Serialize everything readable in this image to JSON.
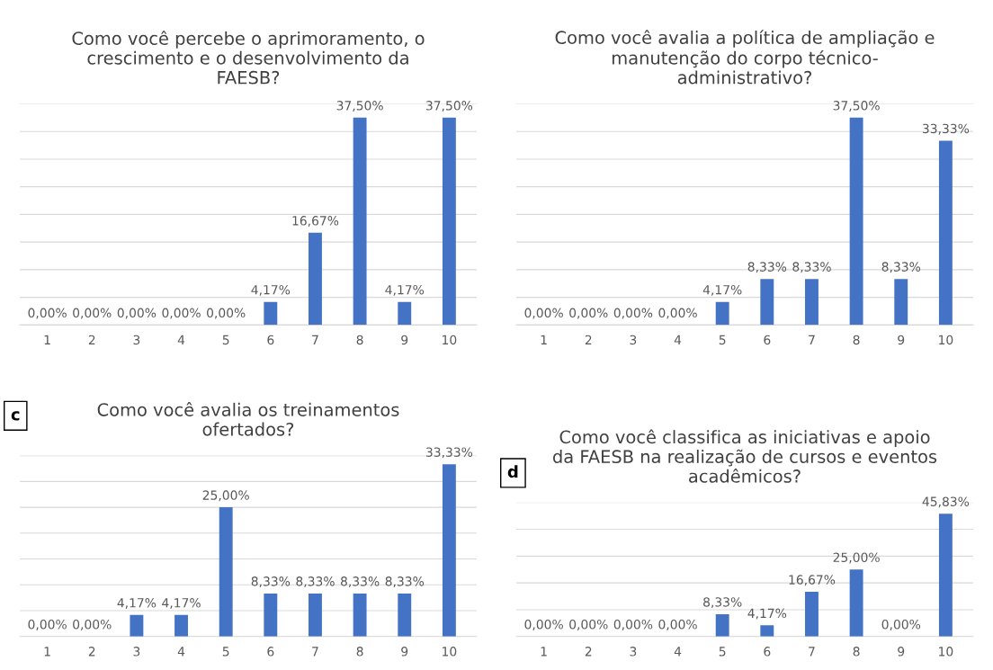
{
  "chart_data": [
    {
      "type": "bar",
      "title": "Como você percebe o aprimoramento, o\ncrescimento e o desenvolvimento da\nFAESB?",
      "categories": [
        "1",
        "2",
        "3",
        "4",
        "5",
        "6",
        "7",
        "8",
        "9",
        "10"
      ],
      "values": [
        0,
        0,
        0,
        0,
        0,
        4.17,
        16.67,
        37.5,
        4.17,
        37.5
      ],
      "value_labels": [
        "0,00%",
        "0,00%",
        "0,00%",
        "0,00%",
        "0,00%",
        "4,17%",
        "16,67%",
        "37,50%",
        "4,17%",
        "37,50%"
      ],
      "color": "#4472c4",
      "ylim": [
        0,
        40
      ],
      "yticks": [
        {
          "value": 0,
          "label": null
        },
        {
          "value": 5,
          "label": null
        },
        {
          "value": 10,
          "label": null
        },
        {
          "value": 15,
          "label": null
        },
        {
          "value": 20,
          "label": null
        },
        {
          "value": 25,
          "label": null
        },
        {
          "value": 30,
          "label": null
        },
        {
          "value": 35,
          "label": null
        },
        {
          "value": 40,
          "label": null
        }
      ],
      "grid": "y",
      "tick_labels": "x"
    },
    {
      "type": "bar",
      "title": "Como você avalia a política de ampliação e\nmanutenção do corpo técnico-\nadministrativo?",
      "categories": [
        "1",
        "2",
        "3",
        "4",
        "5",
        "6",
        "7",
        "8",
        "9",
        "10"
      ],
      "values": [
        0,
        0,
        0,
        0,
        4.17,
        8.33,
        8.33,
        37.5,
        8.33,
        33.33
      ],
      "value_labels": [
        "0,00%",
        "0,00%",
        "0,00%",
        "0,00%",
        "4,17%",
        "8,33%",
        "8,33%",
        "37,50%",
        "8,33%",
        "33,33%"
      ],
      "color": "#4472c4",
      "ylim": [
        0,
        40
      ],
      "yticks": [
        {
          "value": 0,
          "label": null
        },
        {
          "value": 5,
          "label": null
        },
        {
          "value": 10,
          "label": null
        },
        {
          "value": 15,
          "label": null
        },
        {
          "value": 20,
          "label": null
        },
        {
          "value": 25,
          "label": null
        },
        {
          "value": 30,
          "label": null
        },
        {
          "value": 35,
          "label": null
        },
        {
          "value": 40,
          "label": null
        }
      ],
      "grid": "y",
      "tick_labels": "x"
    },
    {
      "type": "bar",
      "title": "Como você avalia os treinamentos\nofertados?",
      "annotations": [
        "c"
      ],
      "categories": [
        "1",
        "2",
        "3",
        "4",
        "5",
        "6",
        "7",
        "8",
        "9",
        "10"
      ],
      "values": [
        0,
        0,
        4.17,
        4.17,
        25,
        8.33,
        8.33,
        8.33,
        8.33,
        33.33
      ],
      "value_labels": [
        "0,00%",
        "0,00%",
        "4,17%",
        "4,17%",
        "25,00%",
        "8,33%",
        "8,33%",
        "8,33%",
        "8,33%",
        "33,33%"
      ],
      "color": "#4472c4",
      "ylim": [
        0,
        35
      ],
      "yticks": [
        {
          "value": 0,
          "label": null
        },
        {
          "value": 5,
          "label": null
        },
        {
          "value": 10,
          "label": null
        },
        {
          "value": 15,
          "label": null
        },
        {
          "value": 20,
          "label": null
        },
        {
          "value": 25,
          "label": null
        },
        {
          "value": 30,
          "label": null
        },
        {
          "value": 35,
          "label": null
        }
      ],
      "grid": "y",
      "tick_labels": "x"
    },
    {
      "type": "bar",
      "title": "Como você classifica as iniciativas e apoio\nda FAESB na realização de cursos e eventos\nacadêmicos?",
      "annotations": [
        "d"
      ],
      "categories": [
        "1",
        "2",
        "3",
        "4",
        "5",
        "6",
        "7",
        "8",
        "9",
        "10"
      ],
      "values": [
        0,
        0,
        0,
        0,
        8.33,
        4.17,
        16.67,
        25,
        0,
        45.83
      ],
      "value_labels": [
        "0,00%",
        "0,00%",
        "0,00%",
        "0,00%",
        "8,33%",
        "4,17%",
        "16,67%",
        "25,00%",
        "0,00%",
        "45,83%"
      ],
      "color": "#4472c4",
      "ylim": [
        0,
        50
      ],
      "yticks": [
        {
          "value": 0,
          "label": null
        },
        {
          "value": 10,
          "label": null
        },
        {
          "value": 20,
          "label": null
        },
        {
          "value": 30,
          "label": null
        },
        {
          "value": 40,
          "label": null
        },
        {
          "value": 50,
          "label": null
        }
      ],
      "grid": "y",
      "tick_labels": "x"
    }
  ]
}
